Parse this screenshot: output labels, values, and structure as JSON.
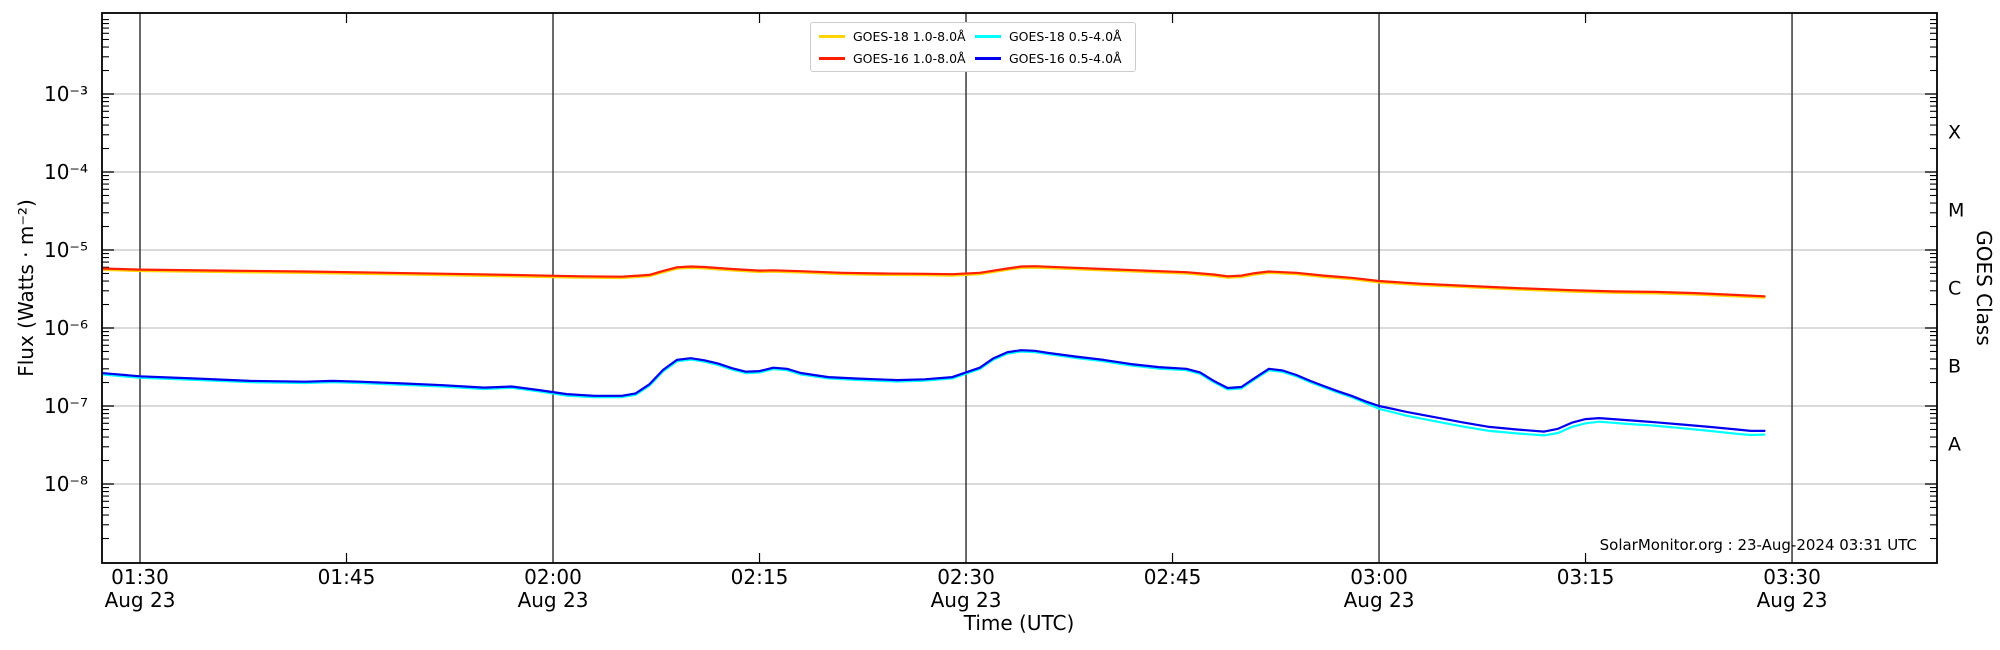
{
  "chart_data": {
    "type": "line",
    "title": "",
    "xlabel": "Time (UTC)",
    "ylabel": "Flux (Watts · m⁻²)",
    "right_ylabel": "GOES Class",
    "date": "Aug 23",
    "x_range_utc": [
      "01:27",
      "03:41"
    ],
    "ylim": [
      1e-09,
      0.01
    ],
    "grid": {
      "vertical_lines_utc": [
        "01:30",
        "02:00",
        "02:30",
        "03:00",
        "03:30"
      ],
      "horizontal_decades": [
        -3,
        -4,
        -5,
        -6,
        -7,
        -8
      ]
    },
    "legend_position": "top-center",
    "x_ticks": [
      {
        "t": 0,
        "label": "01:30",
        "sub": "Aug 23",
        "grid": true
      },
      {
        "t": 15,
        "label": "01:45",
        "grid": false
      },
      {
        "t": 30,
        "label": "02:00",
        "sub": "Aug 23",
        "grid": true
      },
      {
        "t": 45,
        "label": "02:15",
        "grid": false
      },
      {
        "t": 60,
        "label": "02:30",
        "sub": "Aug 23",
        "grid": true
      },
      {
        "t": 75,
        "label": "02:45",
        "grid": false
      },
      {
        "t": 90,
        "label": "03:00",
        "sub": "Aug 23",
        "grid": true
      },
      {
        "t": 105,
        "label": "03:15",
        "grid": false
      },
      {
        "t": 120,
        "label": "03:30",
        "sub": "Aug 23",
        "grid": true
      }
    ],
    "y_ticks": [
      {
        "exp": -3,
        "label": "10⁻³"
      },
      {
        "exp": -4,
        "label": "10⁻⁴"
      },
      {
        "exp": -5,
        "label": "10⁻⁵"
      },
      {
        "exp": -6,
        "label": "10⁻⁶"
      },
      {
        "exp": -7,
        "label": "10⁻⁷"
      },
      {
        "exp": -8,
        "label": "10⁻⁸"
      }
    ],
    "goes_classes": [
      {
        "label": "X",
        "band_exp": [
          -4,
          -3
        ]
      },
      {
        "label": "M",
        "band_exp": [
          -5,
          -4
        ]
      },
      {
        "label": "C",
        "band_exp": [
          -6,
          -5
        ]
      },
      {
        "label": "B",
        "band_exp": [
          -7,
          -6
        ]
      },
      {
        "label": "A",
        "band_exp": [
          -8,
          -7
        ]
      }
    ],
    "time_unit": "minutes after 01:30 UTC",
    "series": [
      {
        "name": "GOES-18 1.0-8.0Å",
        "color": "#ffd400",
        "points": [
          [
            -2.8,
            5.57e-06
          ],
          [
            0,
            5.38e-06
          ],
          [
            6,
            5.23e-06
          ],
          [
            12,
            5.09e-06
          ],
          [
            18,
            4.9e-06
          ],
          [
            24,
            4.7e-06
          ],
          [
            28,
            4.56e-06
          ],
          [
            32,
            4.42e-06
          ],
          [
            35,
            4.37e-06
          ],
          [
            37,
            4.61e-06
          ],
          [
            38,
            5.18e-06
          ],
          [
            39,
            5.76e-06
          ],
          [
            40,
            5.9e-06
          ],
          [
            41,
            5.81e-06
          ],
          [
            43,
            5.47e-06
          ],
          [
            45,
            5.23e-06
          ],
          [
            46,
            5.28e-06
          ],
          [
            48,
            5.14e-06
          ],
          [
            51,
            4.9e-06
          ],
          [
            54,
            4.8e-06
          ],
          [
            57,
            4.75e-06
          ],
          [
            59,
            4.7e-06
          ],
          [
            61,
            4.9e-06
          ],
          [
            63,
            5.57e-06
          ],
          [
            64,
            5.9e-06
          ],
          [
            65,
            5.95e-06
          ],
          [
            67,
            5.76e-06
          ],
          [
            70,
            5.47e-06
          ],
          [
            73,
            5.23e-06
          ],
          [
            76,
            4.99e-06
          ],
          [
            78,
            4.66e-06
          ],
          [
            79,
            4.42e-06
          ],
          [
            80,
            4.51e-06
          ],
          [
            81,
            4.85e-06
          ],
          [
            82,
            5.09e-06
          ],
          [
            84,
            4.9e-06
          ],
          [
            86,
            4.51e-06
          ],
          [
            88,
            4.22e-06
          ],
          [
            90,
            3.84e-06
          ],
          [
            93,
            3.55e-06
          ],
          [
            96,
            3.36e-06
          ],
          [
            100,
            3.12e-06
          ],
          [
            104,
            2.93e-06
          ],
          [
            107,
            2.83e-06
          ],
          [
            110,
            2.78e-06
          ],
          [
            113,
            2.69e-06
          ],
          [
            116,
            2.54e-06
          ],
          [
            118,
            2.45e-06
          ]
        ]
      },
      {
        "name": "GOES-16 1.0-8.0Å",
        "color": "#ff1e00",
        "points": [
          [
            -2.8,
            5.8e-06
          ],
          [
            0,
            5.6e-06
          ],
          [
            6,
            5.45e-06
          ],
          [
            12,
            5.3e-06
          ],
          [
            18,
            5.1e-06
          ],
          [
            24,
            4.9e-06
          ],
          [
            28,
            4.75e-06
          ],
          [
            32,
            4.6e-06
          ],
          [
            35,
            4.55e-06
          ],
          [
            37,
            4.8e-06
          ],
          [
            38,
            5.4e-06
          ],
          [
            39,
            6e-06
          ],
          [
            40,
            6.15e-06
          ],
          [
            41,
            6.05e-06
          ],
          [
            43,
            5.7e-06
          ],
          [
            45,
            5.45e-06
          ],
          [
            46,
            5.5e-06
          ],
          [
            48,
            5.35e-06
          ],
          [
            51,
            5.1e-06
          ],
          [
            54,
            5e-06
          ],
          [
            57,
            4.95e-06
          ],
          [
            59,
            4.9e-06
          ],
          [
            61,
            5.1e-06
          ],
          [
            63,
            5.8e-06
          ],
          [
            64,
            6.15e-06
          ],
          [
            65,
            6.2e-06
          ],
          [
            67,
            6e-06
          ],
          [
            70,
            5.7e-06
          ],
          [
            73,
            5.45e-06
          ],
          [
            76,
            5.2e-06
          ],
          [
            78,
            4.85e-06
          ],
          [
            79,
            4.6e-06
          ],
          [
            80,
            4.7e-06
          ],
          [
            81,
            5.05e-06
          ],
          [
            82,
            5.3e-06
          ],
          [
            84,
            5.1e-06
          ],
          [
            86,
            4.7e-06
          ],
          [
            88,
            4.4e-06
          ],
          [
            90,
            4e-06
          ],
          [
            93,
            3.7e-06
          ],
          [
            96,
            3.5e-06
          ],
          [
            100,
            3.25e-06
          ],
          [
            104,
            3.05e-06
          ],
          [
            107,
            2.95e-06
          ],
          [
            110,
            2.9e-06
          ],
          [
            113,
            2.8e-06
          ],
          [
            116,
            2.65e-06
          ],
          [
            118,
            2.55e-06
          ]
        ]
      },
      {
        "name": "GOES-18 0.5-4.0Å",
        "color": "#00ffff",
        "points": [
          [
            -2.8,
            2.54e-07
          ],
          [
            0,
            2.3e-07
          ],
          [
            4,
            2.16e-07
          ],
          [
            8,
            2.02e-07
          ],
          [
            12,
            1.97e-07
          ],
          [
            14,
            2.02e-07
          ],
          [
            16,
            1.97e-07
          ],
          [
            19,
            1.87e-07
          ],
          [
            22,
            1.78e-07
          ],
          [
            25,
            1.65e-07
          ],
          [
            27,
            1.71e-07
          ],
          [
            29,
            1.54e-07
          ],
          [
            31,
            1.36e-07
          ],
          [
            33,
            1.3e-07
          ],
          [
            35,
            1.3e-07
          ],
          [
            36,
            1.39e-07
          ],
          [
            37,
            1.82e-07
          ],
          [
            38,
            2.78e-07
          ],
          [
            39,
            3.74e-07
          ],
          [
            40,
            3.94e-07
          ],
          [
            41,
            3.7e-07
          ],
          [
            42,
            3.36e-07
          ],
          [
            43,
            2.93e-07
          ],
          [
            44,
            2.64e-07
          ],
          [
            45,
            2.69e-07
          ],
          [
            46,
            2.98e-07
          ],
          [
            47,
            2.88e-07
          ],
          [
            48,
            2.54e-07
          ],
          [
            50,
            2.26e-07
          ],
          [
            52,
            2.16e-07
          ],
          [
            55,
            2.06e-07
          ],
          [
            57,
            2.11e-07
          ],
          [
            59,
            2.26e-07
          ],
          [
            61,
            2.98e-07
          ],
          [
            62,
            3.94e-07
          ],
          [
            63,
            4.7e-07
          ],
          [
            64,
            4.99e-07
          ],
          [
            65,
            4.9e-07
          ],
          [
            66,
            4.61e-07
          ],
          [
            68,
            4.13e-07
          ],
          [
            70,
            3.74e-07
          ],
          [
            72,
            3.31e-07
          ],
          [
            74,
            3.02e-07
          ],
          [
            76,
            2.88e-07
          ],
          [
            77,
            2.59e-07
          ],
          [
            78,
            2.02e-07
          ],
          [
            79,
            1.63e-07
          ],
          [
            80,
            1.68e-07
          ],
          [
            81,
            2.21e-07
          ],
          [
            82,
            2.88e-07
          ],
          [
            83,
            2.74e-07
          ],
          [
            84,
            2.4e-07
          ],
          [
            85,
            2.02e-07
          ],
          [
            86,
            1.73e-07
          ],
          [
            87,
            1.49e-07
          ],
          [
            88,
            1.3e-07
          ],
          [
            89,
            1.1e-07
          ],
          [
            90,
            9.2e-08
          ],
          [
            92,
            7.5e-08
          ],
          [
            94,
            6.4e-08
          ],
          [
            96,
            5.5e-08
          ],
          [
            98,
            4.8e-08
          ],
          [
            100,
            4.45e-08
          ],
          [
            102,
            4.2e-08
          ],
          [
            103,
            4.5e-08
          ],
          [
            104,
            5.4e-08
          ],
          [
            105,
            6e-08
          ],
          [
            106,
            6.3e-08
          ],
          [
            108,
            5.9e-08
          ],
          [
            110,
            5.6e-08
          ],
          [
            112,
            5.2e-08
          ],
          [
            114,
            4.8e-08
          ],
          [
            116,
            4.4e-08
          ],
          [
            117,
            4.25e-08
          ],
          [
            118,
            4.3e-08
          ]
        ]
      },
      {
        "name": "GOES-16 0.5-4.0Å",
        "color": "#0000ee",
        "points": [
          [
            -2.8,
            2.65e-07
          ],
          [
            0,
            2.4e-07
          ],
          [
            4,
            2.25e-07
          ],
          [
            8,
            2.1e-07
          ],
          [
            12,
            2.05e-07
          ],
          [
            14,
            2.1e-07
          ],
          [
            16,
            2.05e-07
          ],
          [
            19,
            1.95e-07
          ],
          [
            22,
            1.85e-07
          ],
          [
            25,
            1.72e-07
          ],
          [
            27,
            1.78e-07
          ],
          [
            29,
            1.6e-07
          ],
          [
            31,
            1.42e-07
          ],
          [
            33,
            1.35e-07
          ],
          [
            35,
            1.35e-07
          ],
          [
            36,
            1.45e-07
          ],
          [
            37,
            1.9e-07
          ],
          [
            38,
            2.9e-07
          ],
          [
            39,
            3.9e-07
          ],
          [
            40,
            4.1e-07
          ],
          [
            41,
            3.85e-07
          ],
          [
            42,
            3.5e-07
          ],
          [
            43,
            3.05e-07
          ],
          [
            44,
            2.75e-07
          ],
          [
            45,
            2.8e-07
          ],
          [
            46,
            3.1e-07
          ],
          [
            47,
            3e-07
          ],
          [
            48,
            2.65e-07
          ],
          [
            50,
            2.35e-07
          ],
          [
            52,
            2.25e-07
          ],
          [
            55,
            2.15e-07
          ],
          [
            57,
            2.2e-07
          ],
          [
            59,
            2.35e-07
          ],
          [
            61,
            3.1e-07
          ],
          [
            62,
            4.1e-07
          ],
          [
            63,
            4.9e-07
          ],
          [
            64,
            5.2e-07
          ],
          [
            65,
            5.1e-07
          ],
          [
            66,
            4.8e-07
          ],
          [
            68,
            4.3e-07
          ],
          [
            70,
            3.9e-07
          ],
          [
            72,
            3.45e-07
          ],
          [
            74,
            3.15e-07
          ],
          [
            76,
            3e-07
          ],
          [
            77,
            2.7e-07
          ],
          [
            78,
            2.1e-07
          ],
          [
            79,
            1.7e-07
          ],
          [
            80,
            1.75e-07
          ],
          [
            81,
            2.3e-07
          ],
          [
            82,
            3e-07
          ],
          [
            83,
            2.85e-07
          ],
          [
            84,
            2.5e-07
          ],
          [
            85,
            2.1e-07
          ],
          [
            86,
            1.8e-07
          ],
          [
            87,
            1.55e-07
          ],
          [
            88,
            1.35e-07
          ],
          [
            89,
            1.15e-07
          ],
          [
            90,
            1e-07
          ],
          [
            92,
            8.4e-08
          ],
          [
            94,
            7.2e-08
          ],
          [
            96,
            6.2e-08
          ],
          [
            98,
            5.4e-08
          ],
          [
            100,
            5e-08
          ],
          [
            102,
            4.7e-08
          ],
          [
            103,
            5.1e-08
          ],
          [
            104,
            6.1e-08
          ],
          [
            105,
            6.8e-08
          ],
          [
            106,
            7e-08
          ],
          [
            108,
            6.6e-08
          ],
          [
            110,
            6.2e-08
          ],
          [
            112,
            5.8e-08
          ],
          [
            114,
            5.4e-08
          ],
          [
            116,
            5e-08
          ],
          [
            117,
            4.8e-08
          ],
          [
            118,
            4.8e-08
          ]
        ]
      }
    ]
  },
  "footer": {
    "text": "SolarMonitor.org : 23-Aug-2024 03:31 UTC"
  },
  "colors": {
    "plot_border": "#000000",
    "vertical_grid": "#2b2b2b",
    "horizontal_grid": "#c4c4c4",
    "background": "#ffffff"
  }
}
